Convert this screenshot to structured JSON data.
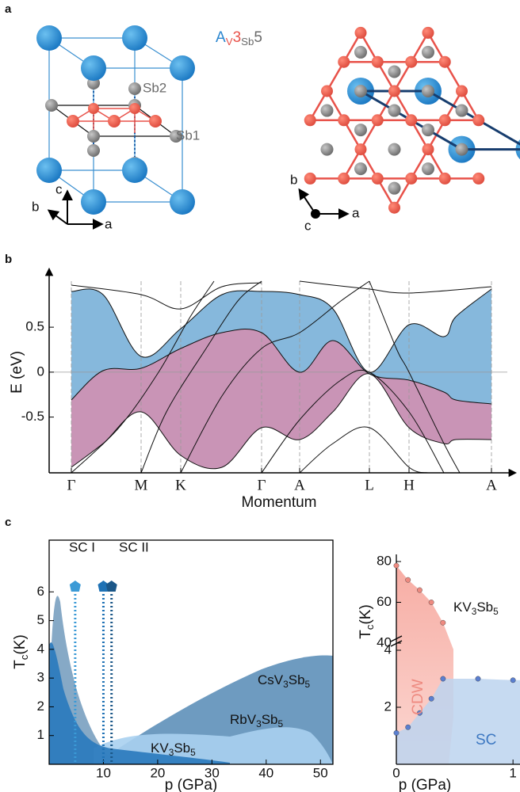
{
  "panel_labels": [
    "a",
    "b",
    "c"
  ],
  "structure": {
    "formula": [
      "A",
      "V",
      "3",
      "Sb",
      "5"
    ],
    "atom_labels": [
      "Sb2",
      "Sb1"
    ],
    "side_axes": [
      "c",
      "b",
      "a"
    ],
    "top_axes": [
      "b",
      "c",
      "a"
    ]
  },
  "chart_data": [
    {
      "type": "bands",
      "ylabel": "E (eV)",
      "xlabel": "Momentum",
      "categories": [
        "Γ",
        "M",
        "K",
        "Γ",
        "A",
        "L",
        "H",
        "A"
      ],
      "ylim": [
        -1.12,
        1.1
      ],
      "yticks": [
        0.5,
        0,
        -0.5
      ]
    },
    {
      "type": "domes",
      "ylabel": [
        "T",
        "c",
        "(K)"
      ],
      "xlabel": "p (GPa)",
      "xlim": [
        0,
        52.3
      ],
      "ylim": [
        0,
        7.8
      ],
      "xticks": [
        10,
        20,
        30,
        40,
        50
      ],
      "yticks": [
        1,
        2,
        3,
        4,
        5,
        6
      ],
      "annotations": [
        "SC I",
        "SC II"
      ],
      "markers": {
        "x": [
          4.8,
          10,
          11.5
        ],
        "y": [
          6.2,
          6.2,
          6.2
        ],
        "colors": [
          "#3b9ad6",
          "#1f72b5",
          "#1b5788"
        ]
      },
      "compounds": [
        [
          "CsV",
          "3",
          "Sb",
          "5"
        ],
        [
          "RbV",
          "3",
          "Sb",
          "5"
        ],
        [
          "KV",
          "3",
          "Sb",
          "5"
        ]
      ]
    },
    {
      "type": "scatter",
      "title": [
        "KV",
        "3",
        "Sb",
        "5"
      ],
      "ylabel": [
        "T",
        "c",
        "(K)"
      ],
      "xlabel": "p (GPa)",
      "xlim": [
        0,
        1.06
      ],
      "xticks": [
        0,
        1
      ],
      "ylim": [
        40,
        80
      ],
      "yticks": [
        40,
        60,
        80
      ],
      "y2lim": [
        0,
        4
      ],
      "y2ticks": [
        2,
        4
      ],
      "series": [
        {
          "name": "CDW",
          "color": "#ee8a80",
          "x": [
            0,
            0.1,
            0.2,
            0.3,
            0.4
          ],
          "values": [
            78,
            71,
            66,
            60,
            50
          ]
        },
        {
          "name": "SC",
          "axis": "y2",
          "color": "#5b7fd0",
          "x": [
            0,
            0.1,
            0.2,
            0.3,
            0.4,
            0.7,
            1.0
          ],
          "values": [
            1.1,
            1.3,
            1.8,
            2.3,
            3.0,
            3.0,
            2.95
          ]
        }
      ]
    }
  ]
}
